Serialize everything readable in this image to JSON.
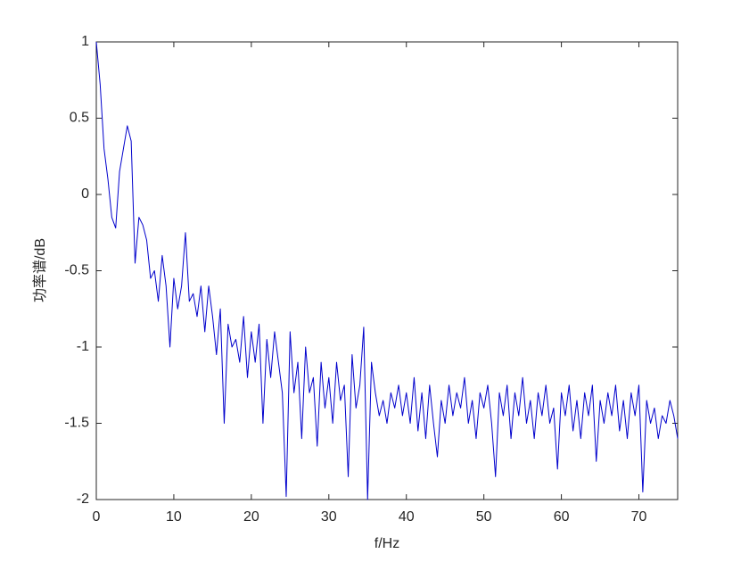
{
  "chart_data": {
    "type": "line",
    "x_label": "f/Hz",
    "y_label": "功率谱/dB",
    "x": [
      0,
      0.5,
      1,
      1.5,
      2,
      2.5,
      3,
      3.5,
      4,
      4.5,
      5,
      5.5,
      6,
      6.5,
      7,
      7.5,
      8,
      8.5,
      9,
      9.5,
      10,
      10.5,
      11,
      11.5,
      12,
      12.5,
      13,
      13.5,
      14,
      14.5,
      15,
      15.5,
      16,
      16.5,
      17,
      17.5,
      18,
      18.5,
      19,
      19.5,
      20,
      20.5,
      21,
      21.5,
      22,
      22.5,
      23,
      23.5,
      24,
      24.5,
      25,
      25.5,
      26,
      26.5,
      27,
      27.5,
      28,
      28.5,
      29,
      29.5,
      30,
      30.5,
      31,
      31.5,
      32,
      32.5,
      33,
      33.5,
      34,
      34.5,
      35,
      35.5,
      36,
      36.5,
      37,
      37.5,
      38,
      38.5,
      39,
      39.5,
      40,
      40.5,
      41,
      41.5,
      42,
      42.5,
      43,
      43.5,
      44,
      44.5,
      45,
      45.5,
      46,
      46.5,
      47,
      47.5,
      48,
      48.5,
      49,
      49.5,
      50,
      50.5,
      51,
      51.5,
      52,
      52.5,
      53,
      53.5,
      54,
      54.5,
      55,
      55.5,
      56,
      56.5,
      57,
      57.5,
      58,
      58.5,
      59,
      59.5,
      60,
      60.5,
      61,
      61.5,
      62,
      62.5,
      63,
      63.5,
      64,
      64.5,
      65,
      65.5,
      66,
      66.5,
      67,
      67.5,
      68,
      68.5,
      69,
      69.5,
      70,
      70.5,
      71,
      71.5,
      72,
      72.5,
      73,
      73.5,
      74,
      74.5,
      75
    ],
    "series": [
      {
        "color": "#0000cc",
        "values": [
          1,
          0.72,
          0.3,
          0.1,
          -0.15,
          -0.22,
          0.15,
          0.3,
          0.45,
          0.35,
          -0.45,
          -0.15,
          -0.2,
          -0.3,
          -0.55,
          -0.5,
          -0.7,
          -0.4,
          -0.6,
          -1.0,
          -0.55,
          -0.75,
          -0.6,
          -0.25,
          -0.7,
          -0.65,
          -0.8,
          -0.6,
          -0.9,
          -0.6,
          -0.8,
          -1.05,
          -0.75,
          -1.5,
          -0.85,
          -1.0,
          -0.95,
          -1.1,
          -0.8,
          -1.2,
          -0.9,
          -1.1,
          -0.85,
          -1.5,
          -0.95,
          -1.2,
          -0.9,
          -1.1,
          -1.3,
          -1.98,
          -0.9,
          -1.3,
          -1.1,
          -1.6,
          -1.0,
          -1.3,
          -1.2,
          -1.65,
          -1.1,
          -1.4,
          -1.2,
          -1.5,
          -1.1,
          -1.35,
          -1.25,
          -1.85,
          -1.05,
          -1.4,
          -1.25,
          -0.87,
          -2.0,
          -1.1,
          -1.3,
          -1.45,
          -1.35,
          -1.5,
          -1.3,
          -1.4,
          -1.25,
          -1.45,
          -1.3,
          -1.5,
          -1.2,
          -1.55,
          -1.3,
          -1.6,
          -1.25,
          -1.5,
          -1.72,
          -1.35,
          -1.5,
          -1.25,
          -1.45,
          -1.3,
          -1.4,
          -1.2,
          -1.5,
          -1.35,
          -1.6,
          -1.3,
          -1.4,
          -1.25,
          -1.5,
          -1.85,
          -1.3,
          -1.45,
          -1.25,
          -1.6,
          -1.3,
          -1.45,
          -1.2,
          -1.5,
          -1.35,
          -1.6,
          -1.3,
          -1.45,
          -1.25,
          -1.5,
          -1.4,
          -1.8,
          -1.3,
          -1.45,
          -1.25,
          -1.55,
          -1.35,
          -1.6,
          -1.3,
          -1.45,
          -1.25,
          -1.75,
          -1.35,
          -1.5,
          -1.3,
          -1.45,
          -1.25,
          -1.55,
          -1.35,
          -1.6,
          -1.3,
          -1.45,
          -1.25,
          -1.95,
          -1.35,
          -1.5,
          -1.4,
          -1.6,
          -1.45,
          -1.5,
          -1.35,
          -1.45,
          -1.6
        ]
      }
    ],
    "xlim": [
      0,
      75
    ],
    "xticks": [
      0,
      10,
      20,
      30,
      40,
      50,
      60,
      70
    ],
    "ylim": [
      -2,
      1
    ],
    "yticks": [
      -2,
      -1.5,
      -1,
      -0.5,
      0,
      0.5,
      1
    ],
    "grid": false
  }
}
